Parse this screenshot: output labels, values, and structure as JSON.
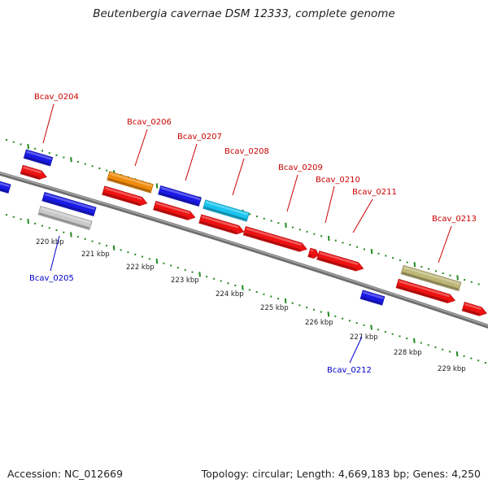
{
  "title": "Beutenbergia cavernae DSM 12333, complete genome",
  "footer": {
    "accession": "Accession: NC_012669",
    "info": "Topology: circular; Length: 4,669,183 bp; Genes: 4,250"
  },
  "colors": {
    "backbone": "#808080",
    "tick_dots": "#1f8a1f",
    "label_top": "#cc0000",
    "label_bottom": "#0000cc"
  },
  "scale_labels": [
    "220 kbp",
    "221 kbp",
    "222 kbp",
    "223 kbp",
    "224 kbp",
    "225 kbp",
    "226 kbp",
    "227 kbp",
    "228 kbp",
    "229 kbp"
  ],
  "gene_labels": [
    {
      "name": "Bcav_0204",
      "side": "top"
    },
    {
      "name": "Bcav_0205",
      "side": "bottom"
    },
    {
      "name": "Bcav_0206",
      "side": "top"
    },
    {
      "name": "Bcav_0207",
      "side": "top"
    },
    {
      "name": "Bcav_0208",
      "side": "top"
    },
    {
      "name": "Bcav_0209",
      "side": "top"
    },
    {
      "name": "Bcav_0210",
      "side": "top"
    },
    {
      "name": "Bcav_0211",
      "side": "top"
    },
    {
      "name": "Bcav_0212",
      "side": "bottom"
    },
    {
      "name": "Bcav_0213",
      "side": "top"
    }
  ],
  "features": [
    {
      "color": "#1a1ae6",
      "strand": "plus-cds"
    },
    {
      "color": "#ee1111",
      "strand": "plus-gene"
    },
    {
      "color": "#1a1ae6",
      "strand": "minus-cds"
    },
    {
      "color": "#1a1ae6",
      "strand": "minus-cds"
    },
    {
      "color": "#c8c8c8",
      "strand": "minus-gene"
    },
    {
      "color": "#f08a0a",
      "strand": "plus-cds"
    },
    {
      "color": "#ee1111",
      "strand": "plus-gene"
    },
    {
      "color": "#1a1ae6",
      "strand": "plus-cds"
    },
    {
      "color": "#ee1111",
      "strand": "plus-gene"
    },
    {
      "color": "#18c4ee",
      "strand": "plus-cds"
    },
    {
      "color": "#ee1111",
      "strand": "plus-gene"
    },
    {
      "color": "#ee1111",
      "strand": "plus-gene"
    },
    {
      "color": "#ee1111",
      "strand": "plus-gene"
    },
    {
      "color": "#ee1111",
      "strand": "plus-gene"
    },
    {
      "color": "#1a1ae6",
      "strand": "minus-cds"
    },
    {
      "color": "#bdb676",
      "strand": "plus-cds"
    },
    {
      "color": "#ee1111",
      "strand": "plus-gene"
    },
    {
      "color": "#ee1111",
      "strand": "plus-gene"
    }
  ]
}
